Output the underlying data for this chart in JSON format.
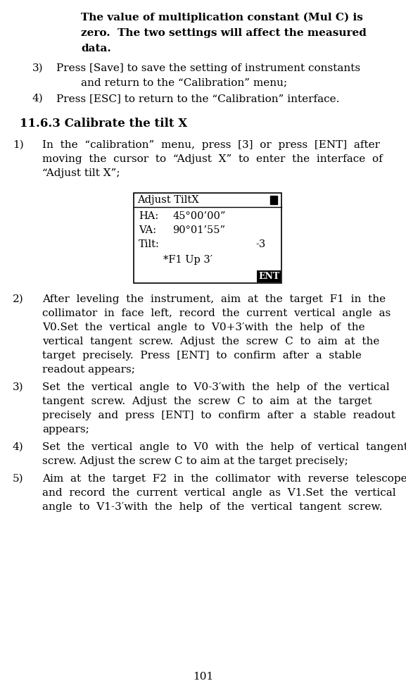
{
  "page_number": "101",
  "background_color": "#ffffff",
  "text_color": "#000000",
  "bold_lines": [
    "The value of multiplication constant (Mul C) is",
    "zero.  The two settings will affect the measured",
    "data."
  ],
  "section_heading": "11.6.3 Calibrate the tilt X",
  "screen": {
    "title": "Adjust TiltX",
    "ha_val": "45°00’00”",
    "va_val": "90°01’55”",
    "tilt_val": "-3",
    "bottom": "*F1 Up 3′",
    "button": "ENT"
  }
}
